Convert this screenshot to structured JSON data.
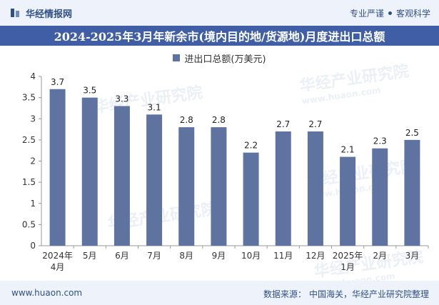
{
  "header": {
    "brand": "华经情报网",
    "slogan_left": "专业严谨",
    "slogan_right": "客观科学"
  },
  "title": "2024-2025年3月年新余市(境内目的地/货源地)月度进出口总额",
  "watermarks": {
    "text": "华经产业研究院",
    "url": "www.huaon.com"
  },
  "footer": {
    "url": "www.huaon.com",
    "source_label": "数据来源：",
    "source_value": "中国海关，华经产业研究院整理"
  },
  "colors": {
    "bar": "#5f73a1",
    "title_bg": "#3f5ea6",
    "header_bg": "#eef3fb"
  },
  "chart_data": {
    "type": "bar",
    "title": "2024-2025年3月年新余市(境内目的地/货源地)月度进出口总额",
    "legend": [
      "进出口总额(万美元)"
    ],
    "categories": [
      "2024年\n4月",
      "5月",
      "6月",
      "7月",
      "8月",
      "9月",
      "10月",
      "11月",
      "12月",
      "2025年\n1月",
      "2月",
      "3月"
    ],
    "series": [
      {
        "name": "进出口总额(万美元)",
        "values": [
          3.7,
          3.5,
          3.3,
          3.1,
          2.8,
          2.8,
          2.2,
          2.7,
          2.7,
          2.1,
          2.3,
          2.5
        ]
      }
    ],
    "data_labels": [
      "3.7",
      "3.5",
      "3.3",
      "3.1",
      "2.8",
      "2.8",
      "2.2",
      "2.7",
      "2.7",
      "2.1",
      "2.3",
      "2.5"
    ],
    "ylim": [
      0,
      4
    ],
    "yticks": [
      "0",
      "0.5",
      "1",
      "1.5",
      "2",
      "2.5",
      "3",
      "3.5",
      "4"
    ],
    "xlabel": "",
    "ylabel": ""
  }
}
